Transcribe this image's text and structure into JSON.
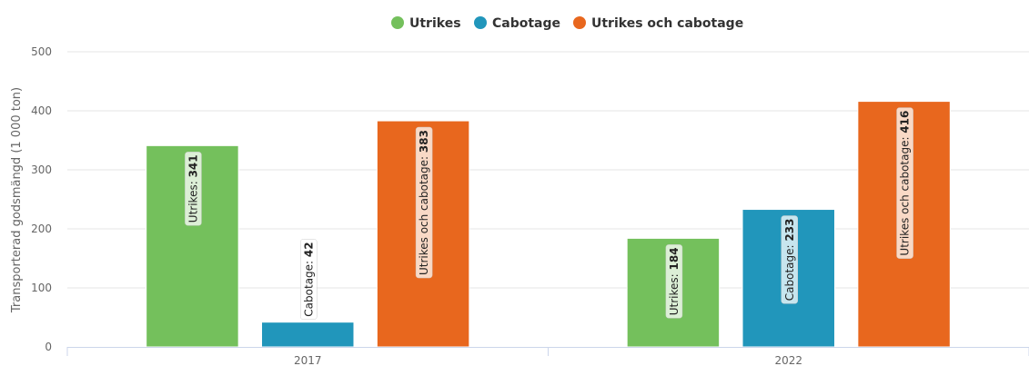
{
  "chart_data": {
    "type": "bar",
    "categories": [
      "2017",
      "2022"
    ],
    "series": [
      {
        "name": "Utrikes",
        "values": [
          341,
          184
        ],
        "color": "#74c05c"
      },
      {
        "name": "Cabotage",
        "values": [
          42,
          233
        ],
        "color": "#2196bb"
      },
      {
        "name": "Utrikes och cabotage",
        "values": [
          383,
          416
        ],
        "color": "#e8671e"
      }
    ],
    "ylabel": "Transporterad godsmängd (1 000 ton)",
    "xlabel": "",
    "ylim": [
      0,
      500
    ],
    "yticks": [
      0,
      100,
      200,
      300,
      400,
      500
    ],
    "grid": true,
    "legend": "top-center"
  }
}
